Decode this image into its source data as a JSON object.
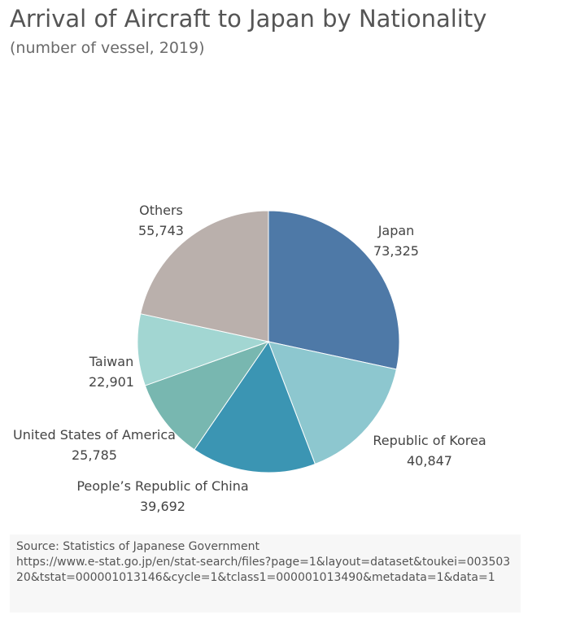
{
  "chart_data": {
    "type": "pie",
    "title": "Arrival of Aircraft to Japan by Nationality",
    "subtitle": "(number of vessel, 2019)",
    "slices": [
      {
        "label": "Japan",
        "value": 73325,
        "value_label": "73,325",
        "color": "#4e79a7"
      },
      {
        "label": "Republic of Korea",
        "value": 40847,
        "value_label": "40,847",
        "color": "#8dc7cf"
      },
      {
        "label": "People’s Republic of China",
        "value": 39692,
        "value_label": "39,692",
        "color": "#3b95b3"
      },
      {
        "label": "United States of America",
        "value": 25785,
        "value_label": "25,785",
        "color": "#78b7b0"
      },
      {
        "label": "Taiwan",
        "value": 22901,
        "value_label": "22,901",
        "color": "#a2d6d2"
      },
      {
        "label": "Others",
        "value": 55743,
        "value_label": "55,743",
        "color": "#bab0ac"
      }
    ],
    "start": "12 o'clock",
    "direction": "clockwise"
  },
  "source": {
    "line1": "Source: Statistics of  Japanese Government",
    "url": " https://www.e-stat.go.jp/en/stat-search/files?page=1&layout=dataset&toukei=00350320&tstat=000001013146&cycle=1&tclass1=000001013490&metadata=1&data=1"
  }
}
